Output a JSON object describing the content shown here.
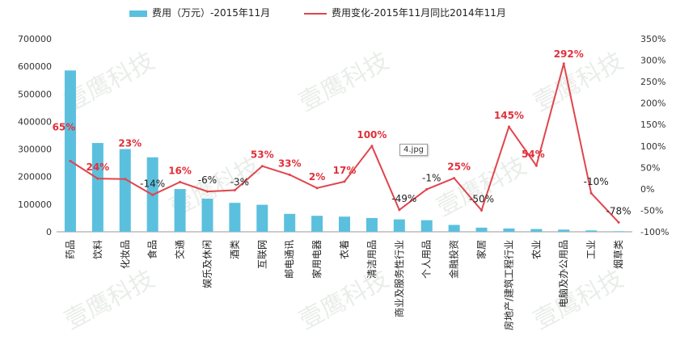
{
  "legend": {
    "bar_label": "费用（万元）-2015年11月",
    "line_label": "费用变化-2015年11月同比2014年11月"
  },
  "image_tag": "4.jpg",
  "watermark": "壹鹰科技",
  "colors": {
    "bar": "#5bc0de",
    "line": "#e0454d",
    "positive_label": "#e0303a",
    "negative_label": "#222222"
  },
  "chart_data": {
    "type": "bar",
    "title": "",
    "xlabel": "",
    "ylabel": "",
    "categories": [
      "药品",
      "饮料",
      "化妆品",
      "食品",
      "交通",
      "娱乐及休闲",
      "酒类",
      "互联网",
      "邮电通讯",
      "家用电器",
      "衣着",
      "清洁用品",
      "商业及服务性行业",
      "个人用品",
      "金融投资",
      "家居",
      "房地产/建筑工程行业",
      "农业",
      "电脑及办公用品",
      "工业",
      "烟草类"
    ],
    "ylim": [
      0,
      700000
    ],
    "y_ticks": [
      "0",
      "100000",
      "200000",
      "300000",
      "400000",
      "500000",
      "600000",
      "700000"
    ],
    "y2lim": [
      -100,
      350
    ],
    "y2_ticks": [
      "-100%",
      "-50%",
      "0%",
      "50%",
      "100%",
      "150%",
      "200%",
      "250%",
      "300%",
      "350%"
    ],
    "grid": false,
    "legend_position": "top",
    "series": [
      {
        "name": "费用（万元）-2015年11月",
        "type": "bar",
        "axis": "left",
        "values": [
          585000,
          322000,
          300000,
          270000,
          155000,
          120000,
          105000,
          98000,
          65000,
          58000,
          55000,
          50000,
          45000,
          42000,
          25000,
          15000,
          12000,
          10000,
          8000,
          5000,
          2000
        ]
      },
      {
        "name": "费用变化-2015年11月同比2014年11月",
        "type": "line",
        "axis": "right",
        "values": [
          65,
          24,
          23,
          -14,
          16,
          -6,
          -3,
          53,
          33,
          2,
          17,
          100,
          -49,
          -1,
          25,
          -50,
          145,
          54,
          292,
          -10,
          -78
        ],
        "labels": [
          "65%",
          "24%",
          "23%",
          "-14%",
          "16%",
          "-6%",
          "-3%",
          "53%",
          "33%",
          "2%",
          "17%",
          "100%",
          "-49%",
          "-1%",
          "25%",
          "-50%",
          "145%",
          "54%",
          "292%",
          "-10%",
          "-78%"
        ]
      }
    ]
  }
}
